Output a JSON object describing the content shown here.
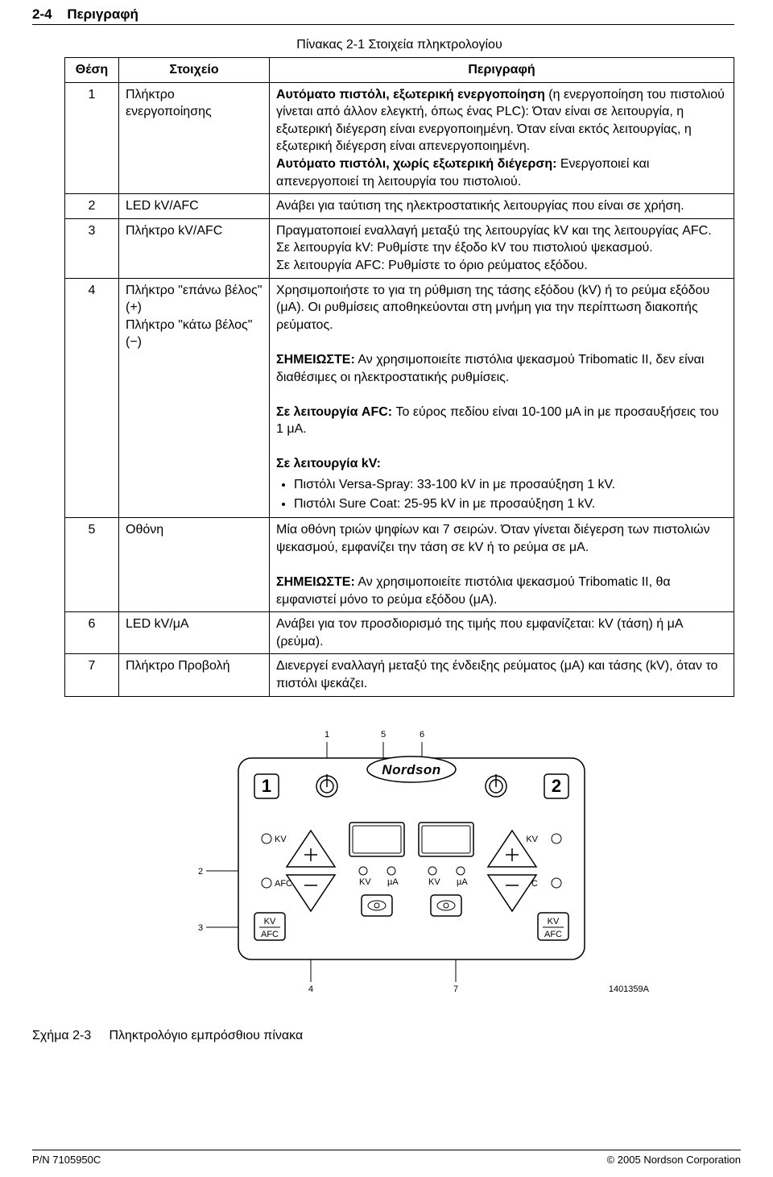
{
  "header": {
    "page_ref": "2-4",
    "section": "Περιγραφή"
  },
  "table": {
    "caption": "Πίνακας 2‑1  Στοιχεία πληκτρολογίου",
    "columns": [
      "Θέση",
      "Στοιχείο",
      "Περιγραφή"
    ],
    "rows": [
      {
        "pos": "1",
        "element": "Πλήκτρο ενεργοποίησης",
        "desc_html": "<span class='bold'>Αυτόματο πιστόλι, εξωτερική ενεργοποίηση</span> (η ενεργοποίηση του πιστολιού γίνεται από άλλον ελεγκτή, όπως ένας PLC):  Όταν είναι σε λειτουργία, η εξωτερική διέγερση είναι ενεργοποιημένη. Όταν είναι εκτός λειτουργίας, η εξωτερική διέγερση είναι απενεργοποιημένη.<br><span class='bold'>Αυτόματο πιστόλι, χωρίς εξωτερική διέγερση:</span> Ενεργοποιεί και απενεργοποιεί τη λειτουργία του πιστολιού."
      },
      {
        "pos": "2",
        "element": "LED kV/AFC",
        "desc_html": "Ανάβει για ταύτιση της ηλεκτροστατικής λειτουργίας που είναι σε χρήση."
      },
      {
        "pos": "3",
        "element": "Πλήκτρο kV/AFC",
        "desc_html": "Πραγματοποιεί εναλλαγή μεταξύ της λειτουργίας kV και της λειτουργίας AFC.<br>Σε λειτουργία kV: Ρυθμίστε την έξοδο kV του πιστολιού ψεκασμού.<br>Σε λειτουργία AFC: Ρυθμίστε το όριο ρεύματος εξόδου."
      },
      {
        "pos": "4",
        "element": "Πλήκτρο \"επάνω βέλος\" (+)<br>Πλήκτρο \"κάτω βέλος\" (−)",
        "desc_html": "Χρησιμοποιήστε το για τη ρύθμιση της τάσης εξόδου (kV) ή το ρεύμα εξόδου (μΑ).  Οι ρυθμίσεις αποθηκεύονται στη μνήμη για την περίπτωση διακοπής ρεύματος.<br><br><span class='bold'>ΣΗΜΕΙΩΣΤΕ:</span>  Αν χρησιμοποιείτε πιστόλια ψεκασμού Tribomatic II, δεν είναι διαθέσιμες οι ηλεκτροστατικής ρυθμίσεις.<br><br><span class='bold'>Σε λειτουργία AFC:</span>  Το εύρος πεδίου είναι 10‑100 μΑ in με προσαυξήσεις του 1 μΑ.<br><br><span class='bold'>Σε λειτουργία kV:</span><ul class='bullets'><li>Πιστόλι Versa‑Spray: 33‑100 kV in με προσαύξηση 1 kV.</li><li>Πιστόλι Sure Coat: 25‑95 kV in με προσαύξηση 1 kV.</li></ul>"
      },
      {
        "pos": "5",
        "element": "Οθόνη",
        "desc_html": "Μία οθόνη τριών ψηφίων και 7 σειρών. Όταν γίνεται διέγερση των πιστολιών ψεκασμού, εμφανίζει την τάση σε kV ή το ρεύμα σε μΑ.<br><br><span class='bold'>ΣΗΜΕΙΩΣΤΕ:</span>  Αν χρησιμοποιείτε πιστόλια ψεκασμού Tribomatic II, θα εμφανιστεί μόνο το ρεύμα εξόδου (μΑ)."
      },
      {
        "pos": "6",
        "element": "LED kV/μΑ",
        "desc_html": "Ανάβει για τον προσδιορισμό της τιμής που εμφανίζεται: kV (τάση) ή μΑ (ρεύμα)."
      },
      {
        "pos": "7",
        "element": "Πλήκτρο Προβολή",
        "desc_html": "Διενεργεί εναλλαγή μεταξύ της ένδειξης ρεύματος (μΑ) και τάσης (kV), όταν το πιστόλι ψεκάζει."
      }
    ]
  },
  "figure": {
    "callouts": [
      "1",
      "2",
      "3",
      "4",
      "5",
      "6",
      "7"
    ],
    "panel_text": {
      "logo": "Nordson",
      "kv": "KV",
      "afc": "AFC",
      "ua": "µA",
      "btn_kv_afc_top": "KV",
      "btn_kv_afc_bot": "AFC",
      "num_1": "1",
      "num_2": "2"
    },
    "id": "1401359A",
    "caption_prefix": "Σχήμα 2‑3",
    "caption": "Πληκτρολόγιο εμπρόσθιου πίνακα"
  },
  "footer": {
    "left": "P/N 7105950C",
    "right": "© 2005 Nordson Corporation"
  }
}
